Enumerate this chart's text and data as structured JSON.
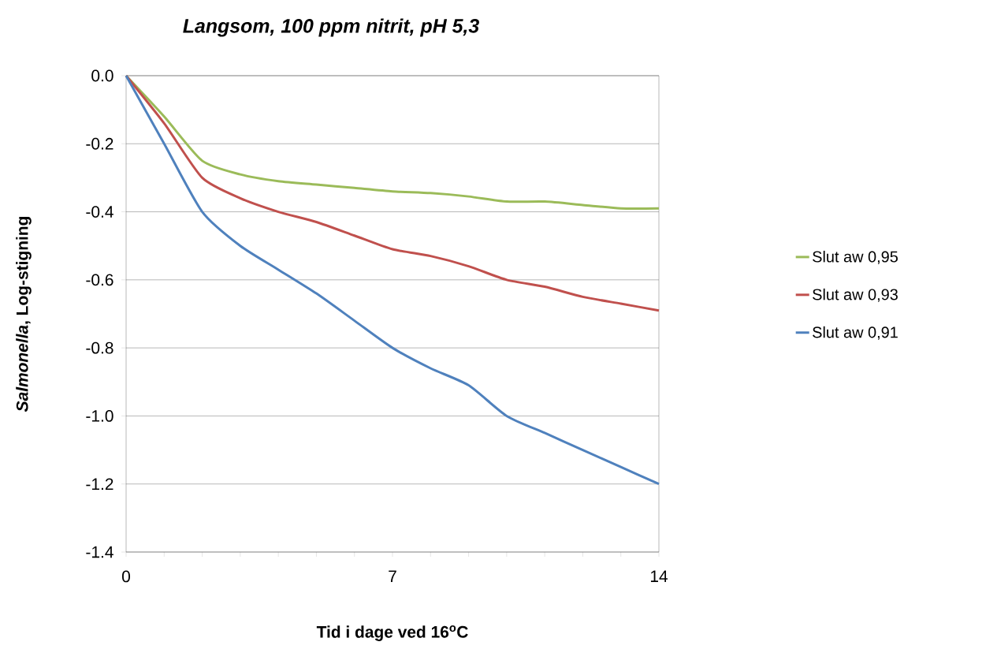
{
  "chart_data": {
    "type": "line",
    "title": "Langsom, 100 ppm nitrit, pH 5,3",
    "xlabel": "Tid i dage ved 16$^{o}$C",
    "ylabel": "*Salmonella*, Log-stigning",
    "x": [
      0,
      1,
      2,
      3,
      4,
      5,
      6,
      7,
      8,
      9,
      10,
      11,
      12,
      13,
      14
    ],
    "series": [
      {
        "name": "Slut aw 0,95",
        "color": "#9bbb59",
        "values": [
          0,
          -0.12,
          -0.25,
          -0.29,
          -0.31,
          -0.32,
          -0.33,
          -0.34,
          -0.345,
          -0.355,
          -0.37,
          -0.37,
          -0.38,
          -0.39,
          -0.39
        ]
      },
      {
        "name": "Slut aw 0,93",
        "color": "#c0504d",
        "values": [
          0,
          -0.14,
          -0.3,
          -0.36,
          -0.4,
          -0.43,
          -0.47,
          -0.51,
          -0.53,
          -0.56,
          -0.6,
          -0.62,
          -0.65,
          -0.67,
          -0.69
        ]
      },
      {
        "name": "Slut aw 0,91",
        "color": "#4f81bd",
        "values": [
          0,
          -0.2,
          -0.4,
          -0.5,
          -0.57,
          -0.64,
          -0.72,
          -0.8,
          -0.86,
          -0.91,
          -1.0,
          -1.05,
          -1.1,
          -1.15,
          -1.2
        ]
      }
    ],
    "xlim": [
      0,
      14
    ],
    "xticks": [
      0,
      {
        "value": 1,
        "label": null
      },
      {
        "value": 2,
        "label": null
      },
      {
        "value": 3,
        "label": null
      },
      {
        "value": 4,
        "label": null
      },
      {
        "value": 5,
        "label": null
      },
      {
        "value": 6,
        "label": null
      },
      7,
      {
        "value": 8,
        "label": null
      },
      {
        "value": 9,
        "label": null
      },
      {
        "value": 10,
        "label": null
      },
      {
        "value": 11,
        "label": null
      },
      {
        "value": 12,
        "label": null
      },
      {
        "value": 13,
        "label": null
      },
      14
    ],
    "ylim": [
      -1.4,
      0
    ],
    "yticks": [
      {
        "value": -1.4,
        "label": "-1.4"
      },
      {
        "value": -1.2,
        "label": "-1.2"
      },
      {
        "value": -1.0,
        "label": "-1.0"
      },
      {
        "value": -0.8,
        "label": "-0.8"
      },
      {
        "value": -0.6,
        "label": "-0.6"
      },
      {
        "value": -0.4,
        "label": "-0.4"
      },
      {
        "value": -0.2,
        "label": "-0.2"
      },
      {
        "value": 0,
        "label": "0.0"
      }
    ],
    "grid": "y",
    "legend": "right",
    "marker": "none",
    "line_style": "solid"
  }
}
